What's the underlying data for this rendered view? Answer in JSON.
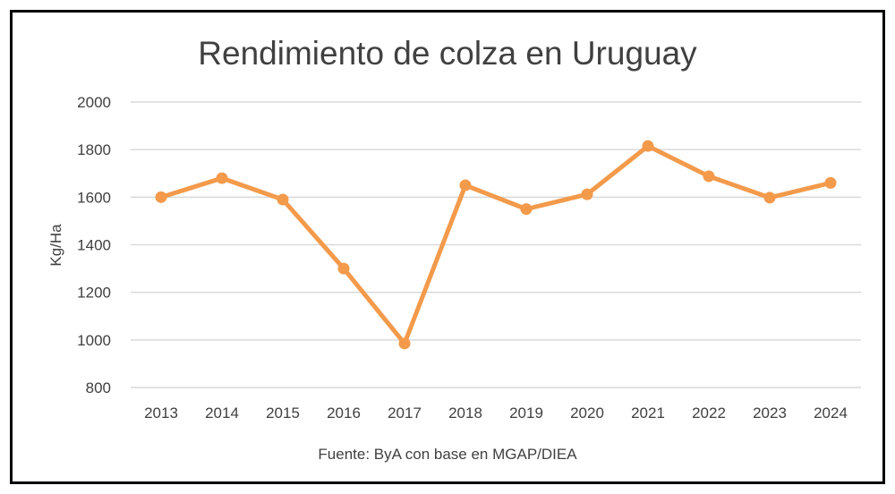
{
  "chart_data": {
    "type": "line",
    "title": "Rendimiento de colza en Uruguay",
    "xlabel": "",
    "ylabel": "Kg/Ha",
    "footnote": "Fuente: ByA con base en MGAP/DIEA",
    "categories": [
      "2013",
      "2014",
      "2015",
      "2016",
      "2017",
      "2018",
      "2019",
      "2020",
      "2021",
      "2022",
      "2023",
      "2024"
    ],
    "series": [
      {
        "name": "Rendimiento",
        "color": "#F39A4B",
        "values": [
          1600,
          1680,
          1590,
          1300,
          985,
          1650,
          1550,
          1612,
          1815,
          1688,
          1598,
          1660
        ]
      }
    ],
    "ylim": [
      800,
      2000
    ],
    "yticks": [
      800,
      1000,
      1200,
      1400,
      1600,
      1800,
      2000
    ],
    "grid": true,
    "gridColor": "#d9d9d9",
    "legend": "none"
  }
}
